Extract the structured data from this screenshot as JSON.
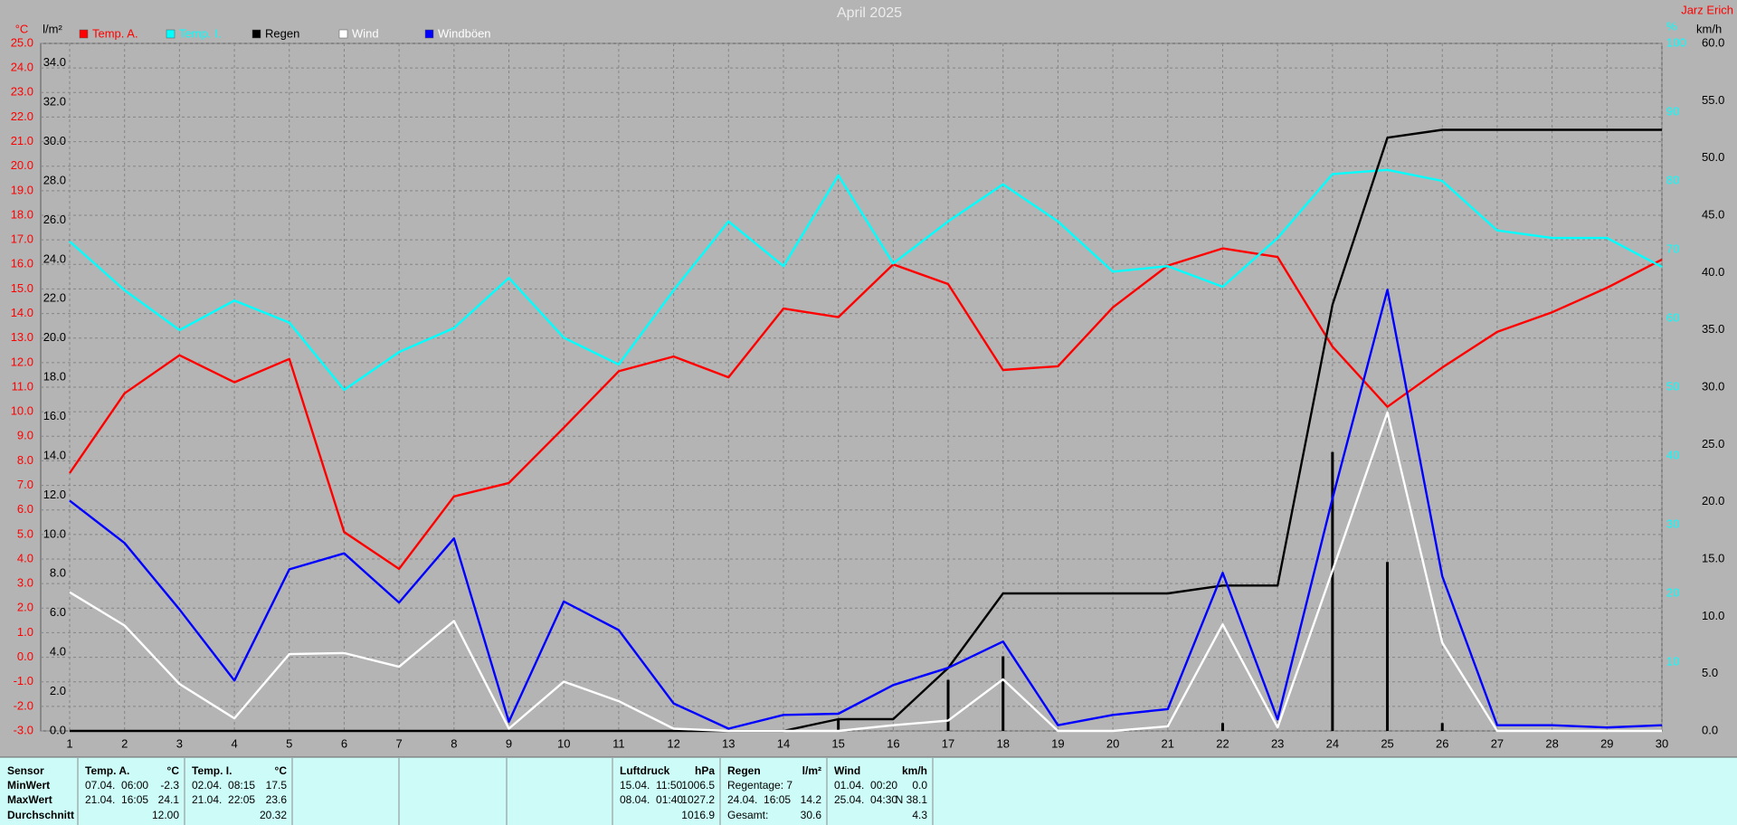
{
  "chart_data": {
    "type": "line",
    "title": "April 2025",
    "author": "Jarz Erich",
    "unit_labels": {
      "y": "°C",
      "y2": "l/m²",
      "y3": "%",
      "y4": "km/h"
    },
    "x": [
      1,
      2,
      3,
      4,
      5,
      6,
      7,
      8,
      9,
      10,
      11,
      12,
      13,
      14,
      15,
      16,
      17,
      18,
      19,
      20,
      21,
      22,
      23,
      24,
      25,
      26,
      27,
      28,
      29,
      30
    ],
    "xlim": [
      1,
      30
    ],
    "xticks": [
      1,
      2,
      3,
      4,
      5,
      6,
      7,
      8,
      9,
      10,
      11,
      12,
      13,
      14,
      15,
      16,
      17,
      18,
      19,
      20,
      21,
      22,
      23,
      24,
      25,
      26,
      27,
      28,
      29,
      30
    ],
    "ylim": [
      -3,
      25
    ],
    "yticks": [
      {
        "value": -3,
        "label": "-3.0"
      },
      {
        "value": -2,
        "label": "-2.0"
      },
      {
        "value": -1,
        "label": "-1.0"
      },
      {
        "value": 0,
        "label": "0.0"
      },
      {
        "value": 1,
        "label": "1.0"
      },
      {
        "value": 2,
        "label": "2.0"
      },
      {
        "value": 3,
        "label": "3.0"
      },
      {
        "value": 4,
        "label": "4.0"
      },
      {
        "value": 5,
        "label": "5.0"
      },
      {
        "value": 6,
        "label": "6.0"
      },
      {
        "value": 7,
        "label": "7.0"
      },
      {
        "value": 8,
        "label": "8.0"
      },
      {
        "value": 9,
        "label": "9.0"
      },
      {
        "value": 10,
        "label": "10.0"
      },
      {
        "value": 11,
        "label": "11.0"
      },
      {
        "value": 12,
        "label": "12.0"
      },
      {
        "value": 13,
        "label": "13.0"
      },
      {
        "value": 14,
        "label": "14.0"
      },
      {
        "value": 15,
        "label": "15.0"
      },
      {
        "value": 16,
        "label": "16.0"
      },
      {
        "value": 17,
        "label": "17.0"
      },
      {
        "value": 18,
        "label": "18.0"
      },
      {
        "value": 19,
        "label": "19.0"
      },
      {
        "value": 20,
        "label": "20.0"
      },
      {
        "value": 21,
        "label": "21.0"
      },
      {
        "value": 22,
        "label": "22.0"
      },
      {
        "value": 23,
        "label": "23.0"
      },
      {
        "value": 24,
        "label": "24.0"
      },
      {
        "value": 25,
        "label": "25.0"
      }
    ],
    "y2lim": [
      0,
      35
    ],
    "y2ticks": [
      {
        "value": 0,
        "label": "0.0"
      },
      {
        "value": 2,
        "label": "2.0"
      },
      {
        "value": 4,
        "label": "4.0"
      },
      {
        "value": 6,
        "label": "6.0"
      },
      {
        "value": 8,
        "label": "8.0"
      },
      {
        "value": 10,
        "label": "10.0"
      },
      {
        "value": 12,
        "label": "12.0"
      },
      {
        "value": 14,
        "label": "14.0"
      },
      {
        "value": 16,
        "label": "16.0"
      },
      {
        "value": 18,
        "label": "18.0"
      },
      {
        "value": 20,
        "label": "20.0"
      },
      {
        "value": 22,
        "label": "22.0"
      },
      {
        "value": 24,
        "label": "24.0"
      },
      {
        "value": 26,
        "label": "26.0"
      },
      {
        "value": 28,
        "label": "28.0"
      },
      {
        "value": 30,
        "label": "30.0"
      },
      {
        "value": 32,
        "label": "32.0"
      },
      {
        "value": 34,
        "label": "34.0"
      }
    ],
    "y3lim": [
      0,
      100
    ],
    "y3ticks": [
      10,
      20,
      30,
      40,
      50,
      60,
      70,
      80,
      90,
      100
    ],
    "y4lim": [
      0,
      60
    ],
    "y4ticks": [
      {
        "value": 0,
        "label": "0.0"
      },
      {
        "value": 5,
        "label": "5.0"
      },
      {
        "value": 10,
        "label": "10.0"
      },
      {
        "value": 15,
        "label": "15.0"
      },
      {
        "value": 20,
        "label": "20.0"
      },
      {
        "value": 25,
        "label": "25.0"
      },
      {
        "value": 30,
        "label": "30.0"
      },
      {
        "value": 35,
        "label": "35.0"
      },
      {
        "value": 40,
        "label": "40.0"
      },
      {
        "value": 45,
        "label": "45.0"
      },
      {
        "value": 50,
        "label": "50.0"
      },
      {
        "value": 55,
        "label": "55.0"
      },
      {
        "value": 60,
        "label": "60.0"
      }
    ],
    "grid": true,
    "series": [
      {
        "name": "Temp. A.",
        "color": "#ff0000",
        "axis": "y",
        "values": [
          7.5,
          10.75,
          12.3,
          11.2,
          12.15,
          5.1,
          3.6,
          6.55,
          7.1,
          9.35,
          11.65,
          12.25,
          11.4,
          14.2,
          13.85,
          16.0,
          15.2,
          11.7,
          11.85,
          14.25,
          15.95,
          16.65,
          16.3,
          12.65,
          10.2,
          11.8,
          13.25,
          14.05,
          15.05,
          16.2
        ]
      },
      {
        "name": "Temp. I.",
        "color": "#00ffff",
        "axis": "y3",
        "values": [
          71.2,
          64.1,
          58.3,
          62.6,
          59.4,
          49.6,
          55.1,
          58.6,
          65.9,
          57.2,
          53.3,
          64.1,
          74.1,
          67.6,
          80.8,
          68.0,
          74.1,
          79.5,
          74.1,
          66.8,
          67.6,
          64.6,
          71.7,
          81.0,
          81.6,
          80.0,
          72.8,
          71.7,
          71.7,
          67.5
        ]
      },
      {
        "name": "Regen",
        "color": "#000000",
        "axis": "y2",
        "values": [
          0,
          0,
          0,
          0,
          0,
          0,
          0,
          0,
          0,
          0,
          0,
          0,
          0,
          0,
          0.6,
          0.6,
          3.2,
          7.0,
          7.0,
          7.0,
          7.0,
          7.4,
          7.4,
          21.7,
          30.2,
          30.6,
          30.6,
          30.6,
          30.6,
          30.6
        ]
      },
      {
        "name": "Wind",
        "color": "#ffffff",
        "axis": "y4",
        "values": [
          12.1,
          9.2,
          4.1,
          1.1,
          6.7,
          6.8,
          5.6,
          9.6,
          0.2,
          4.3,
          2.6,
          0.2,
          0,
          0,
          0,
          0.5,
          0.9,
          4.5,
          0,
          0,
          0.4,
          9.3,
          0.3,
          14.0,
          27.8,
          7.7,
          0,
          0,
          0,
          0
        ]
      },
      {
        "name": "Windböen",
        "color": "#0000ff",
        "axis": "y4",
        "values": [
          20.1,
          16.4,
          10.6,
          4.4,
          14.1,
          15.5,
          11.2,
          16.8,
          0.8,
          11.3,
          8.8,
          2.4,
          0.2,
          1.4,
          1.5,
          4.0,
          5.5,
          7.8,
          0.5,
          1.4,
          1.9,
          13.8,
          1.0,
          20.3,
          38.5,
          13.5,
          0.5,
          0.5,
          0.3,
          0.5
        ]
      }
    ],
    "rain_bars": {
      "color": "#000000",
      "axis": "y2",
      "values": [
        0,
        0,
        0,
        0,
        0,
        0,
        0,
        0,
        0,
        0,
        0,
        0,
        0,
        0,
        0.6,
        0,
        2.6,
        3.8,
        0,
        0,
        0,
        0.4,
        0,
        14.2,
        8.6,
        0.4,
        0,
        0,
        0,
        0
      ]
    }
  },
  "footer": {
    "row_labels": [
      "Sensor",
      "MinWert",
      "MaxWert",
      "Durchschnitt"
    ],
    "groups": [
      {
        "name": "Temp. A.",
        "unit": "°C",
        "rows": [
          {
            "left": "07.04.  06:00",
            "right": "-2.3"
          },
          {
            "left": "21.04.  16:05",
            "right": "24.1"
          },
          {
            "right": "12.00"
          }
        ]
      },
      {
        "name": "Temp. I.",
        "unit": "°C",
        "rows": [
          {
            "left": "02.04.  08:15",
            "right": "17.5"
          },
          {
            "left": "21.04.  22:05",
            "right": "23.6"
          },
          {
            "right": "20.32"
          }
        ]
      },
      {},
      {},
      {},
      {
        "name": "Luftdruck",
        "unit": "hPa",
        "rows": [
          {
            "left": "15.04.  11:50",
            "right": "1006.5"
          },
          {
            "left": "08.04.  01:40",
            "right": "1027.2"
          },
          {
            "right": "1016.9"
          }
        ]
      },
      {
        "name": "Regen",
        "unit": "l/m²",
        "rows": [
          {
            "left": "Regentage: 7"
          },
          {
            "left": "24.04.  16:05",
            "right": "14.2"
          },
          {
            "left": "Gesamt:",
            "right": "30.6"
          }
        ]
      },
      {
        "name": "Wind",
        "unit": "km/h",
        "rows": [
          {
            "left": "01.04.  00:20",
            "right": "0.0"
          },
          {
            "left": "25.04.  04:30",
            "right": "N 38.1"
          },
          {
            "right": "4.3"
          }
        ]
      }
    ]
  }
}
